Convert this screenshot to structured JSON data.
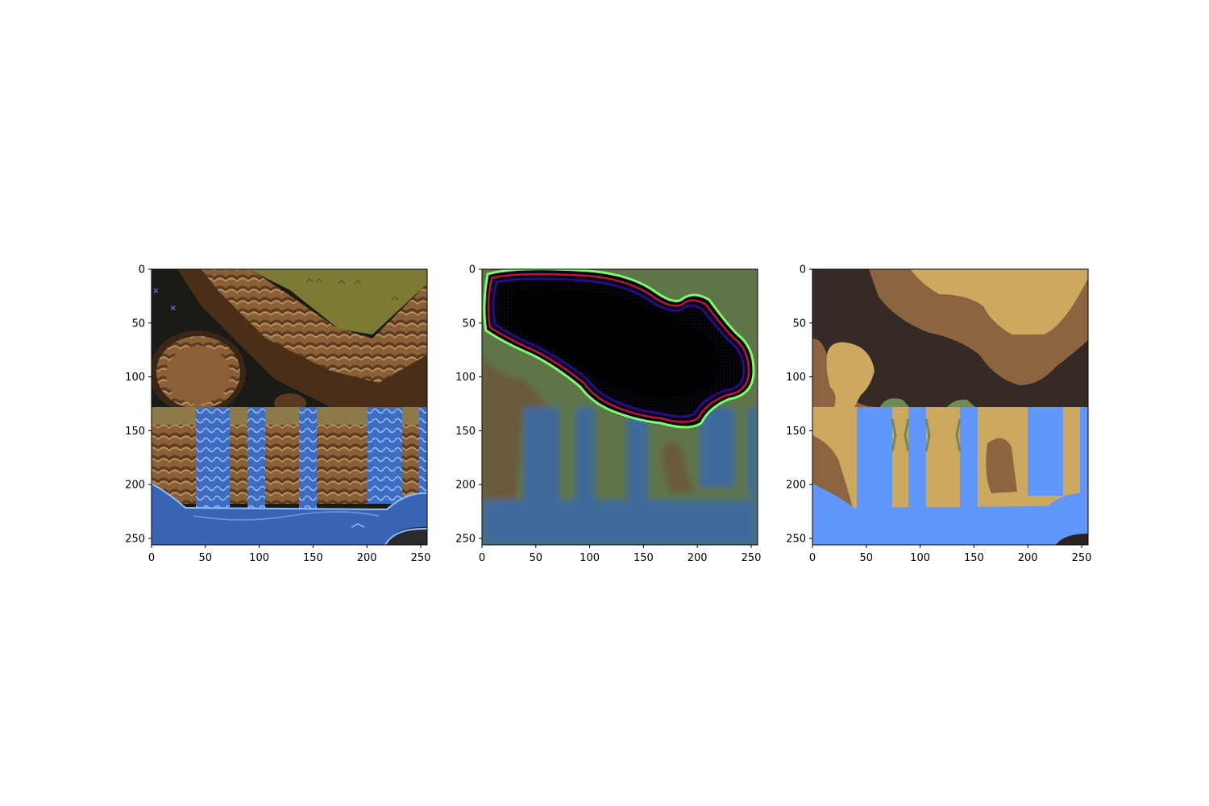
{
  "chart_data": [
    {
      "type": "image",
      "title": "",
      "xlabel": "",
      "ylabel": "",
      "xlim": [
        0,
        256
      ],
      "ylim": [
        256,
        0
      ],
      "x_ticks": [
        0,
        50,
        100,
        150,
        200,
        250
      ],
      "y_ticks": [
        0,
        50,
        100,
        150,
        200,
        250
      ],
      "content": "pixel-art terrain tile: dark cave and brown cliffs on top half, waterfalls over cliff ledges and blue water on bottom half",
      "markers": [
        {
          "x": 4,
          "y": 20,
          "symbol": "x",
          "color": "#5a78d8"
        },
        {
          "x": 20,
          "y": 36,
          "symbol": "x",
          "color": "#5a78d8"
        }
      ]
    },
    {
      "type": "image",
      "title": "",
      "xlabel": "",
      "ylabel": "",
      "xlim": [
        0,
        256
      ],
      "ylim": [
        256,
        0
      ],
      "x_ticks": [
        0,
        50,
        100,
        150,
        200,
        250
      ],
      "y_ticks": [
        0,
        50,
        100,
        150,
        200,
        250
      ],
      "content": "blurred reconstruction: large black region with purple/red/green rim on upper area, green and muted blue below"
    },
    {
      "type": "image",
      "title": "",
      "xlabel": "",
      "ylabel": "",
      "xlim": [
        0,
        256
      ],
      "ylim": [
        256,
        0
      ],
      "x_ticks": [
        0,
        50,
        100,
        150,
        200,
        250
      ],
      "y_ticks": [
        0,
        50,
        100,
        150,
        200,
        250
      ],
      "content": "flat segmentation map: dark brown, medium brown, tan, green and light blue regions"
    }
  ],
  "palette": {
    "cave_dark": "#1a1a16",
    "cliff_dark": "#3a2616",
    "cliff_mid": "#7a5230",
    "cliff_light": "#a77a48",
    "grass_olive": "#7c7a34",
    "water_blue": "#3a64b4",
    "water_light": "#78aaf0",
    "recon_black": "#000000",
    "recon_green": "#5f7548",
    "recon_blue": "#3f6a9c",
    "seg_dark": "#352a25",
    "seg_brown": "#8b6440",
    "seg_tan": "#cca95e",
    "seg_green": "#6f8a58",
    "seg_blue": "#6196fb"
  }
}
